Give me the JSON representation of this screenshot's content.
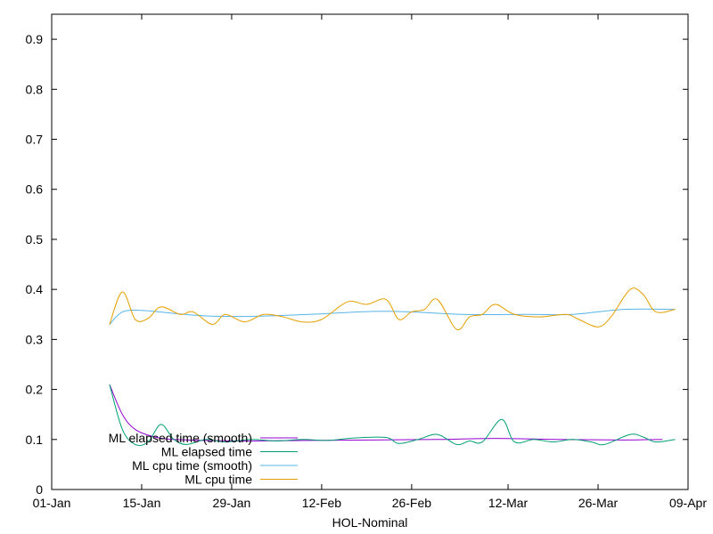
{
  "chart_data": {
    "type": "line",
    "xlabel": "HOL-Nominal",
    "ylabel": "",
    "title": "",
    "xlim": [
      "2024-01-01",
      "2024-04-09"
    ],
    "ylim": [
      0,
      0.95
    ],
    "x_ticks": [
      {
        "date": "2024-01-01",
        "label": "01-Jan"
      },
      {
        "date": "2024-01-15",
        "label": "15-Jan"
      },
      {
        "date": "2024-01-29",
        "label": "29-Jan"
      },
      {
        "date": "2024-02-12",
        "label": "12-Feb"
      },
      {
        "date": "2024-02-26",
        "label": "26-Feb"
      },
      {
        "date": "2024-03-12",
        "label": "12-Mar"
      },
      {
        "date": "2024-03-26",
        "label": "26-Mar"
      },
      {
        "date": "2024-04-09",
        "label": "09-Apr"
      }
    ],
    "y_ticks": [
      {
        "value": 0,
        "label": "0"
      },
      {
        "value": 0.1,
        "label": "0.1"
      },
      {
        "value": 0.2,
        "label": "0.2"
      },
      {
        "value": 0.3,
        "label": "0.3"
      },
      {
        "value": 0.4,
        "label": "0.4"
      },
      {
        "value": 0.5,
        "label": "0.5"
      },
      {
        "value": 0.6,
        "label": "0.6"
      },
      {
        "value": 0.7,
        "label": "0.7"
      },
      {
        "value": 0.8,
        "label": "0.8"
      },
      {
        "value": 0.9,
        "label": "0.9"
      }
    ],
    "grid": false,
    "legend_position": "bottom-left",
    "series": [
      {
        "name": "ML elapsed time (smooth)",
        "color": "#9400d3",
        "points": [
          [
            "2024-01-10",
            0.21
          ],
          [
            "2024-01-12",
            0.15
          ],
          [
            "2024-01-14",
            0.12
          ],
          [
            "2024-01-17",
            0.105
          ],
          [
            "2024-01-20",
            0.1
          ],
          [
            "2024-01-25",
            0.098
          ],
          [
            "2024-02-01",
            0.097
          ],
          [
            "2024-02-10",
            0.098
          ],
          [
            "2024-02-20",
            0.099
          ],
          [
            "2024-03-01",
            0.1
          ],
          [
            "2024-03-10",
            0.102
          ],
          [
            "2024-03-20",
            0.1
          ],
          [
            "2024-03-30",
            0.099
          ],
          [
            "2024-04-05",
            0.1
          ]
        ]
      },
      {
        "name": "ML elapsed time",
        "color": "#009e73",
        "points": [
          [
            "2024-01-10",
            0.21
          ],
          [
            "2024-01-12",
            0.12
          ],
          [
            "2024-01-14",
            0.09
          ],
          [
            "2024-01-16",
            0.095
          ],
          [
            "2024-01-18",
            0.13
          ],
          [
            "2024-01-20",
            0.1
          ],
          [
            "2024-01-22",
            0.09
          ],
          [
            "2024-01-25",
            0.1
          ],
          [
            "2024-01-28",
            0.095
          ],
          [
            "2024-02-01",
            0.1
          ],
          [
            "2024-02-05",
            0.097
          ],
          [
            "2024-02-09",
            0.1
          ],
          [
            "2024-02-13",
            0.098
          ],
          [
            "2024-02-17",
            0.103
          ],
          [
            "2024-02-22",
            0.104
          ],
          [
            "2024-02-24",
            0.092
          ],
          [
            "2024-02-27",
            0.1
          ],
          [
            "2024-03-01",
            0.11
          ],
          [
            "2024-03-04",
            0.09
          ],
          [
            "2024-03-06",
            0.097
          ],
          [
            "2024-03-08",
            0.095
          ],
          [
            "2024-03-11",
            0.14
          ],
          [
            "2024-03-13",
            0.095
          ],
          [
            "2024-03-16",
            0.1
          ],
          [
            "2024-03-19",
            0.095
          ],
          [
            "2024-03-22",
            0.1
          ],
          [
            "2024-03-25",
            0.095
          ],
          [
            "2024-03-27",
            0.09
          ],
          [
            "2024-03-31",
            0.11
          ],
          [
            "2024-04-02",
            0.105
          ],
          [
            "2024-04-04",
            0.095
          ],
          [
            "2024-04-07",
            0.1
          ]
        ]
      },
      {
        "name": "ML cpu time (smooth)",
        "color": "#56b4e9",
        "points": [
          [
            "2024-01-10",
            0.33
          ],
          [
            "2024-01-12",
            0.355
          ],
          [
            "2024-01-15",
            0.358
          ],
          [
            "2024-01-20",
            0.352
          ],
          [
            "2024-01-25",
            0.347
          ],
          [
            "2024-02-01",
            0.346
          ],
          [
            "2024-02-10",
            0.35
          ],
          [
            "2024-02-20",
            0.356
          ],
          [
            "2024-02-26",
            0.355
          ],
          [
            "2024-03-05",
            0.35
          ],
          [
            "2024-03-15",
            0.35
          ],
          [
            "2024-03-22",
            0.35
          ],
          [
            "2024-03-30",
            0.36
          ],
          [
            "2024-04-07",
            0.36
          ]
        ]
      },
      {
        "name": "ML cpu time",
        "color": "#e69f00",
        "points": [
          [
            "2024-01-10",
            0.33
          ],
          [
            "2024-01-12",
            0.395
          ],
          [
            "2024-01-14",
            0.34
          ],
          [
            "2024-01-16",
            0.342
          ],
          [
            "2024-01-18",
            0.365
          ],
          [
            "2024-01-21",
            0.35
          ],
          [
            "2024-01-23",
            0.355
          ],
          [
            "2024-01-26",
            0.33
          ],
          [
            "2024-01-28",
            0.35
          ],
          [
            "2024-01-31",
            0.335
          ],
          [
            "2024-02-03",
            0.35
          ],
          [
            "2024-02-06",
            0.345
          ],
          [
            "2024-02-09",
            0.335
          ],
          [
            "2024-02-12",
            0.34
          ],
          [
            "2024-02-16",
            0.375
          ],
          [
            "2024-02-19",
            0.37
          ],
          [
            "2024-02-22",
            0.38
          ],
          [
            "2024-02-24",
            0.34
          ],
          [
            "2024-02-26",
            0.355
          ],
          [
            "2024-02-28",
            0.36
          ],
          [
            "2024-03-01",
            0.38
          ],
          [
            "2024-03-04",
            0.32
          ],
          [
            "2024-03-06",
            0.345
          ],
          [
            "2024-03-08",
            0.35
          ],
          [
            "2024-03-10",
            0.37
          ],
          [
            "2024-03-13",
            0.35
          ],
          [
            "2024-03-17",
            0.345
          ],
          [
            "2024-03-21",
            0.35
          ],
          [
            "2024-03-23",
            0.34
          ],
          [
            "2024-03-26",
            0.325
          ],
          [
            "2024-03-28",
            0.345
          ],
          [
            "2024-03-31",
            0.4
          ],
          [
            "2024-04-02",
            0.39
          ],
          [
            "2024-04-04",
            0.355
          ],
          [
            "2024-04-07",
            0.36
          ]
        ]
      }
    ]
  }
}
